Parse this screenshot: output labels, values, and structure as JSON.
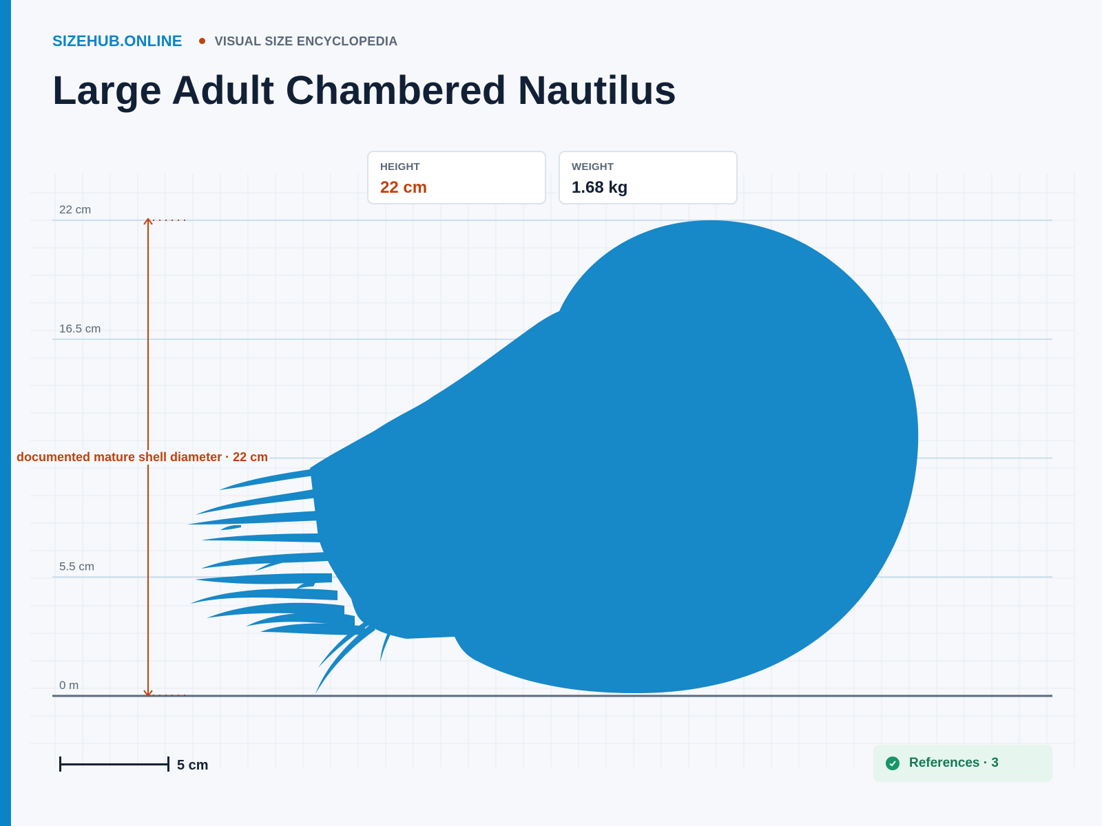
{
  "header": {
    "brand": "SIZEHUB.ONLINE",
    "tagline": "VISUAL SIZE ENCYCLOPEDIA",
    "title": "Large Adult Chambered Nautilus"
  },
  "stats": {
    "height_label": "HEIGHT",
    "height_value": "22 cm",
    "weight_label": "WEIGHT",
    "weight_value": "1.68 kg"
  },
  "chart_data": {
    "type": "size-comparison",
    "y_axis": {
      "unit": "cm",
      "min": 0,
      "max": 22,
      "ticks": [
        {
          "value": 0,
          "label": "0 m"
        },
        {
          "value": 5.5,
          "label": "5.5 cm"
        },
        {
          "value": 16.5,
          "label": "16.5 cm"
        },
        {
          "value": 22,
          "label": "22 cm"
        }
      ],
      "hidden_ticks": [
        11
      ]
    },
    "subject": {
      "name": "Large Adult Chambered Nautilus",
      "height": 22,
      "color": "#1788c8"
    },
    "measurement": {
      "label": "documented mature shell diameter · 22 cm",
      "from": 0,
      "to": 22,
      "color": "#c2410c"
    },
    "scale_bar": {
      "value": 5,
      "label": "5 cm"
    },
    "grid": true
  },
  "footer": {
    "references_label": "References · 3",
    "check_icon": "check-circle-icon"
  },
  "colors": {
    "accent": "#0a84c6",
    "measure": "#c2410c",
    "silhouette": "#1788c8",
    "title": "#122036",
    "references": "#137a56"
  }
}
